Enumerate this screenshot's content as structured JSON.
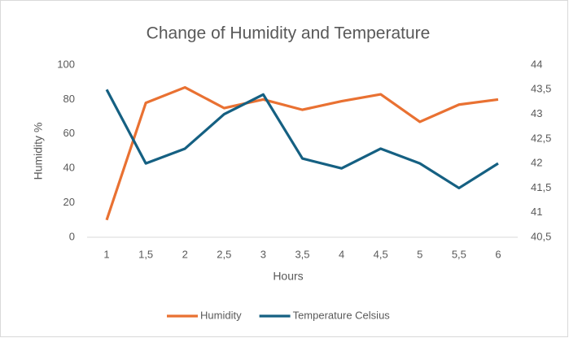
{
  "chart_data": {
    "type": "line",
    "title": "Change of Humidity and Temperature",
    "x_label": "Hours",
    "y_label": "Humidity %",
    "categories": [
      "1",
      "1,5",
      "2",
      "2,5",
      "3",
      "3,5",
      "4",
      "4,5",
      "5",
      "5,5",
      "6"
    ],
    "series": [
      {
        "name": "Humidity",
        "color": "#e97132",
        "values": [
          10,
          78,
          87,
          75,
          80,
          74,
          79,
          83,
          67,
          77,
          80
        ]
      },
      {
        "name": "Temperature Celsius",
        "color": "#156082",
        "axis": "y2",
        "values": [
          43.5,
          42.0,
          42.3,
          43.0,
          43.4,
          42.1,
          41.9,
          42.3,
          42.0,
          41.5,
          42.0
        ]
      }
    ],
    "ylim": [
      0,
      100
    ],
    "yticks": [
      0,
      20,
      40,
      60,
      80,
      100
    ],
    "y2lim": [
      40.5,
      44
    ],
    "y2ticks": [
      {
        "value": 40.5,
        "label": "40,5"
      },
      41,
      {
        "value": 41.5,
        "label": "41,5"
      },
      42,
      {
        "value": 42.5,
        "label": "42,5"
      },
      43,
      {
        "value": 43.5,
        "label": "43,5"
      },
      44
    ],
    "grid": false,
    "legend": "bottom"
  }
}
